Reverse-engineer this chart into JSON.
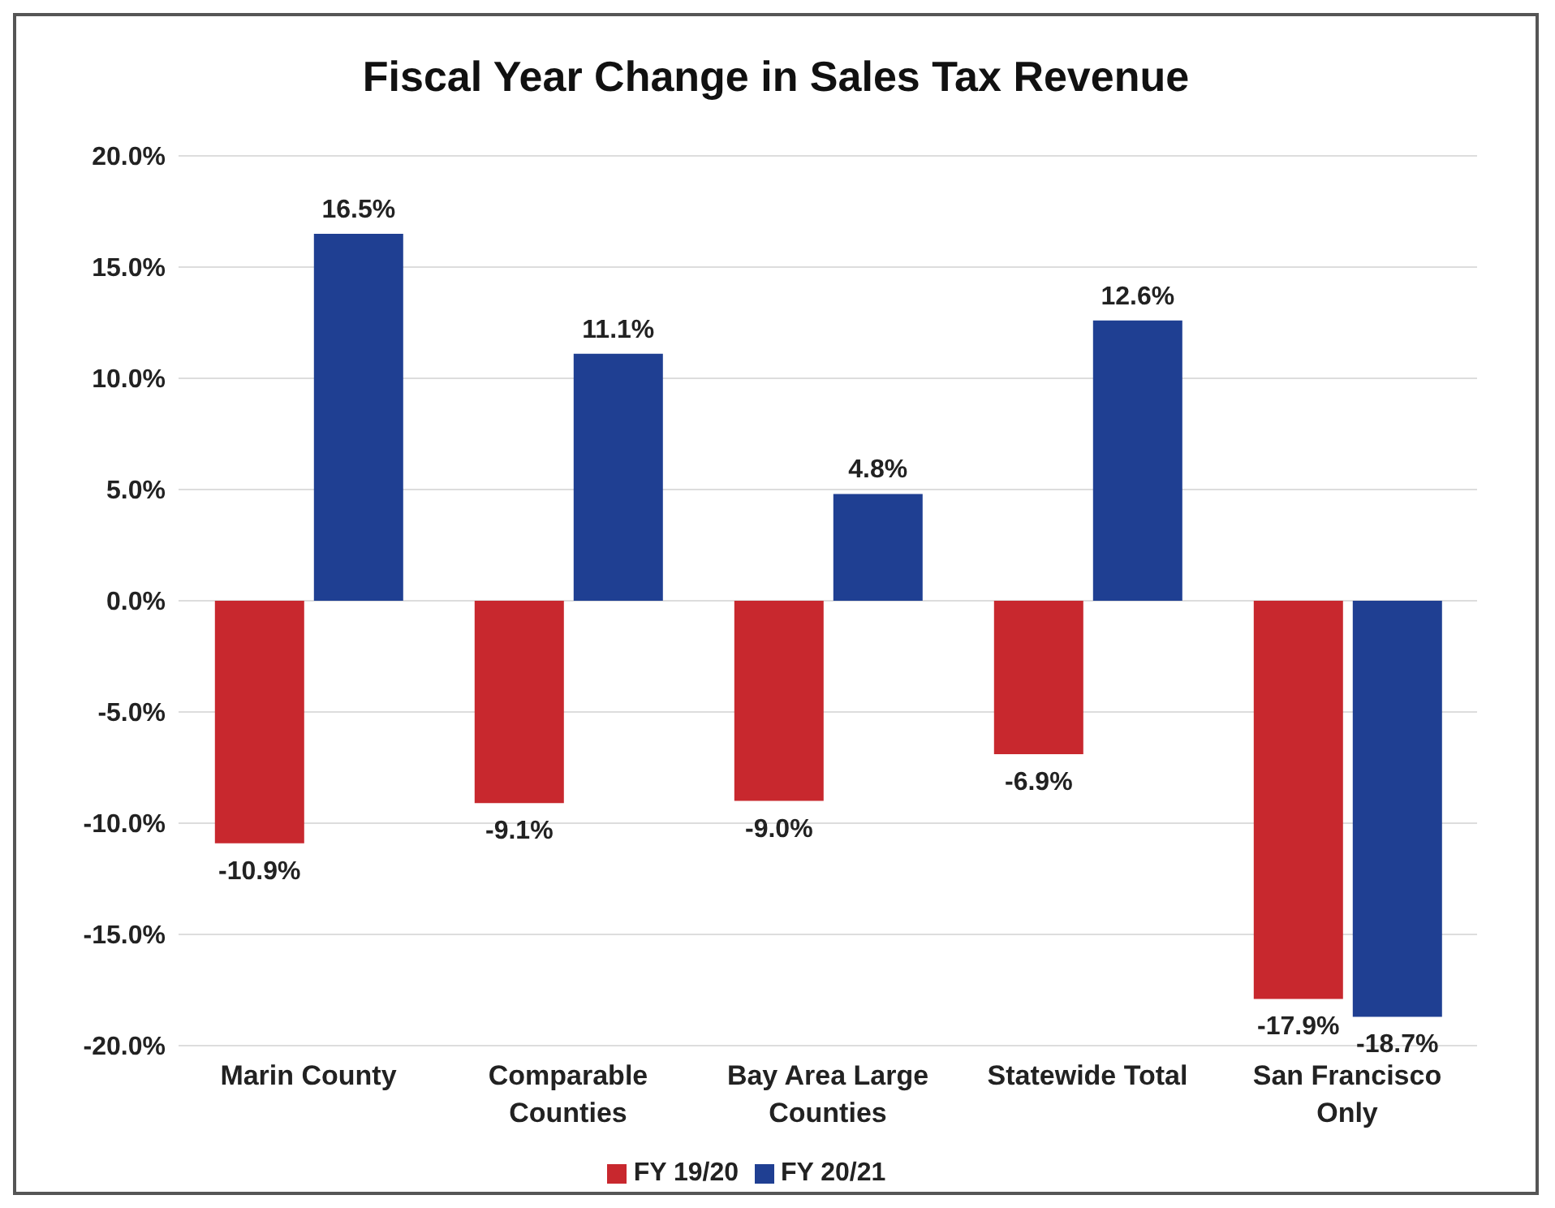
{
  "chart_data": {
    "type": "bar",
    "title": "Fiscal Year Change in Sales Tax Revenue",
    "categories": [
      "Marin County",
      "Comparable Counties",
      "Bay Area Large Counties",
      "Statewide Total",
      "San Francisco Only"
    ],
    "series": [
      {
        "name": "FY 19/20",
        "color": "#c8282e",
        "values": [
          -10.9,
          -9.1,
          -9.0,
          -6.9,
          -17.9
        ],
        "value_labels": [
          "-10.9%",
          "-9.1%",
          "-9.0%",
          "-6.9%",
          "-17.9%"
        ]
      },
      {
        "name": "FY 20/21",
        "color": "#1f3f92",
        "values": [
          16.5,
          11.1,
          4.8,
          12.6,
          -18.7
        ],
        "value_labels": [
          "16.5%",
          "11.1%",
          "4.8%",
          "12.6%",
          "-18.7%"
        ]
      }
    ],
    "ylim": [
      -20,
      20
    ],
    "yticks": [
      {
        "value": -20,
        "label": "-20.0%"
      },
      {
        "value": -15,
        "label": "-15.0%"
      },
      {
        "value": -10,
        "label": "-10.0%"
      },
      {
        "value": -5,
        "label": "-5.0%"
      },
      {
        "value": 0,
        "label": "0.0%"
      },
      {
        "value": 5,
        "label": "5.0%"
      },
      {
        "value": 10,
        "label": "10.0%"
      },
      {
        "value": 15,
        "label": "15.0%"
      },
      {
        "value": 20,
        "label": "20.0%"
      }
    ],
    "grid": "y",
    "legend": "bottom"
  }
}
